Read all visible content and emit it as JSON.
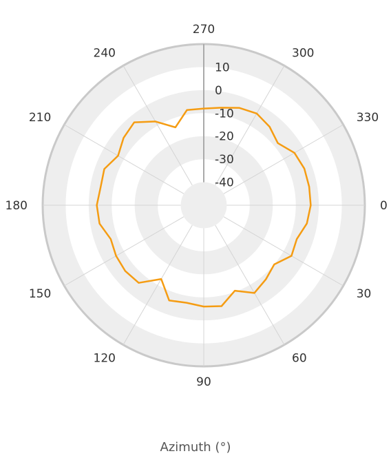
{
  "chart_data": {
    "type": "line",
    "coordinate_system": "polar",
    "angular_axis": {
      "title": "Azimuth (°)",
      "range": [
        0,
        360
      ],
      "direction": "clockwise",
      "zero_position": "right",
      "tick_labels": [
        "0",
        "30",
        "60",
        "90",
        "120",
        "150",
        "180",
        "210",
        "240",
        "270",
        "300",
        "330"
      ]
    },
    "radial_axis": {
      "range": [
        -50,
        20
      ],
      "tick_labels": [
        "10",
        "0",
        "-10",
        "-20",
        "-30",
        "-40"
      ],
      "tick_values": [
        10,
        0,
        -10,
        -20,
        -30,
        -40
      ],
      "label_angle": 270
    },
    "series": [
      {
        "color": "#f59c12",
        "angles": [
          0,
          10,
          20,
          30,
          40,
          50,
          60,
          70,
          80,
          90,
          100,
          110,
          120,
          130,
          140,
          150,
          160,
          170,
          180,
          190,
          200,
          210,
          220,
          230,
          240,
          250,
          260,
          270,
          280,
          290,
          300,
          310,
          320,
          330,
          340,
          350
        ],
        "values": [
          -3.5,
          -4.5,
          -7,
          -6,
          -10,
          -8,
          -6,
          -10.5,
          -5.5,
          -6,
          -7,
          -6,
          -13,
          -6,
          -5.5,
          -6,
          -7,
          -4,
          -3.5,
          -4.5,
          -4,
          -7,
          -4.5,
          -3,
          -8,
          -14,
          -8,
          -8,
          -7,
          -5,
          -4,
          -5.5,
          -8,
          -4.5,
          -3.5,
          -3.5
        ]
      }
    ],
    "bands": "alternating grey/white rings",
    "grid": true
  }
}
